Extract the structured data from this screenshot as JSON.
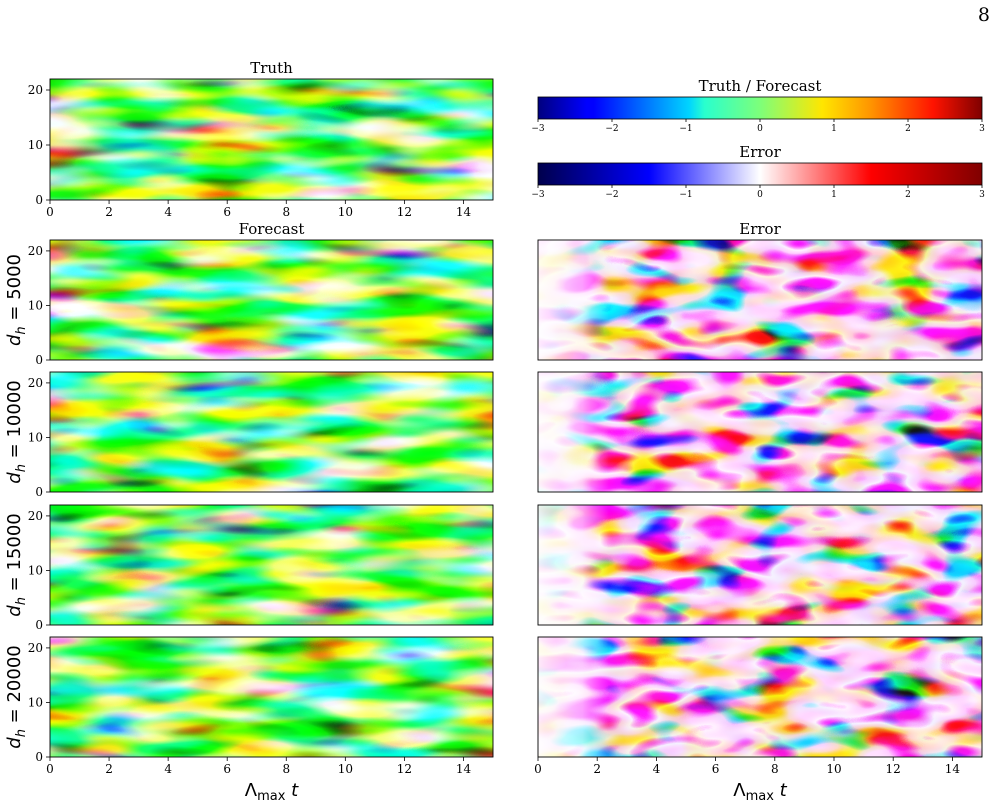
{
  "page_number": "8",
  "figure": {
    "truth_title": "Truth",
    "forecast_title": "Forecast",
    "error_title": "Error",
    "xlabel_html": "Λ<tspan font-size='14'>max</tspan> t",
    "xlabel": "Λmax t",
    "colorbars": [
      {
        "title": "Truth / Forecast",
        "cmap": "jet",
        "ticks": [
          "−3",
          "−2",
          "−1",
          "0",
          "1",
          "2",
          "3"
        ]
      },
      {
        "title": "Error",
        "cmap": "seismic",
        "ticks": [
          "−3",
          "−2",
          "−1",
          "0",
          "1",
          "2",
          "3"
        ]
      }
    ],
    "rows": [
      {
        "label": "d_h = 5000",
        "d_h": "5000"
      },
      {
        "label": "d_h = 10000",
        "d_h": "10000"
      },
      {
        "label": "d_h = 15000",
        "d_h": "15000"
      },
      {
        "label": "d_h = 20000",
        "d_h": "20000"
      }
    ],
    "x_ticks": [
      "0",
      "2",
      "4",
      "6",
      "8",
      "10",
      "12",
      "14"
    ],
    "y_ticks": [
      "0",
      "10",
      "20"
    ]
  },
  "chart_data": {
    "type": "heatmap",
    "x_range": [
      0,
      15
    ],
    "y_range": [
      0,
      22
    ],
    "color_range": [
      -3,
      3
    ],
    "panels": [
      "Truth",
      "Forecast d_h=5000",
      "Error d_h=5000",
      "Forecast d_h=10000",
      "Error d_h=10000",
      "Forecast d_h=15000",
      "Error d_h=15000",
      "Forecast d_h=20000",
      "Error d_h=20000"
    ]
  }
}
